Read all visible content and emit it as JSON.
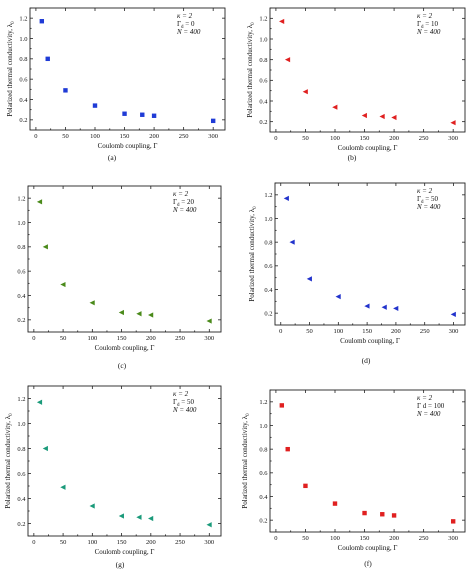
{
  "chart_data": [
    {
      "type": "scatter",
      "panel_caption": "(a)",
      "xlabel": "Coulomb coupling, Γ",
      "ylabel": "Polarized thermal conductivity, λ",
      "ylabel_sub": "0",
      "xlim": [
        -10,
        320
      ],
      "ylim": [
        0.1,
        1.3
      ],
      "xticks": [
        "0",
        "50",
        "100",
        "150",
        "200",
        "250",
        "300"
      ],
      "yticks": [
        "0.2",
        "0.4",
        "0.6",
        "0.8",
        "1.0",
        "1.2"
      ],
      "annotations": [
        "κ = 2",
        "Γ",
        "= 0",
        "N = 400"
      ],
      "marker": "square",
      "color": "#1f3bd6",
      "series": [
        {
          "x": [
            10,
            20,
            50,
            100,
            150,
            180,
            200,
            300
          ],
          "y": [
            1.17,
            0.8,
            0.49,
            0.34,
            0.26,
            0.25,
            0.24,
            0.19
          ]
        }
      ]
    },
    {
      "type": "scatter",
      "panel_caption": "(b)",
      "xlabel": "Coulomb coupling, Γ",
      "ylabel": "Polarized thermal conductivity, λ",
      "ylabel_sub": "0",
      "xlim": [
        -10,
        320
      ],
      "ylim": [
        0.1,
        1.3
      ],
      "xticks": [
        "0",
        "50",
        "100",
        "150",
        "200",
        "250",
        "300"
      ],
      "yticks": [
        "0.2",
        "0.4",
        "0.6",
        "0.8",
        "1.0",
        "1.2"
      ],
      "annotations": [
        "κ = 2",
        "Γ",
        "= 10",
        "N = 400"
      ],
      "marker": "triangle-left",
      "color": "#e02020",
      "series": [
        {
          "x": [
            10,
            20,
            50,
            100,
            150,
            180,
            200,
            300
          ],
          "y": [
            1.17,
            0.8,
            0.49,
            0.34,
            0.26,
            0.25,
            0.24,
            0.19
          ]
        }
      ]
    },
    {
      "type": "scatter",
      "panel_caption": "(c)",
      "xlabel": "Coulomb coupling, Γ",
      "ylabel": "",
      "ylabel_sub": "",
      "xlim": [
        -10,
        320
      ],
      "ylim": [
        0.1,
        1.3
      ],
      "xticks": [
        "0",
        "50",
        "100",
        "150",
        "200",
        "250",
        "300"
      ],
      "yticks": [
        "0.2",
        "0.4",
        "0.6",
        "0.8",
        "1.0",
        "1.2"
      ],
      "annotations": [
        "κ = 2",
        "Γ",
        "= 20",
        "N = 400"
      ],
      "marker": "triangle-left",
      "color": "#4a8a1a",
      "series": [
        {
          "x": [
            10,
            20,
            50,
            100,
            150,
            180,
            200,
            300
          ],
          "y": [
            1.17,
            0.8,
            0.49,
            0.34,
            0.26,
            0.25,
            0.24,
            0.19
          ]
        }
      ]
    },
    {
      "type": "scatter",
      "panel_caption": "(d)",
      "xlabel": "Coulomb coupling, Γ",
      "ylabel": "Polarized thermal conductivity, λ",
      "ylabel_sub": "0",
      "xlim": [
        -10,
        320
      ],
      "ylim": [
        0.1,
        1.3
      ],
      "xticks": [
        "0",
        "50",
        "100",
        "150",
        "200",
        "250",
        "300"
      ],
      "yticks": [
        "0.2",
        "0.4",
        "0.6",
        "0.8",
        "1.0",
        "1.2"
      ],
      "annotations": [
        "κ = 2",
        "Γ",
        "= 50",
        "N = 400"
      ],
      "marker": "triangle-left",
      "color": "#2233cc",
      "series": [
        {
          "x": [
            10,
            20,
            50,
            100,
            150,
            180,
            200,
            300
          ],
          "y": [
            1.17,
            0.8,
            0.49,
            0.34,
            0.26,
            0.25,
            0.24,
            0.19
          ]
        }
      ]
    },
    {
      "type": "scatter",
      "panel_caption": "(g)",
      "xlabel": "Coulomb coupling, Γ",
      "ylabel": "Polarized thermal conductivity, λ",
      "ylabel_sub": "0",
      "xlim": [
        -10,
        320
      ],
      "ylim": [
        0.1,
        1.3
      ],
      "xticks": [
        "0",
        "50",
        "100",
        "150",
        "200",
        "250",
        "300"
      ],
      "yticks": [
        "0.2",
        "0.4",
        "0.6",
        "0.8",
        "1.0",
        "1.2"
      ],
      "annotations": [
        "κ = 2",
        "Γ",
        "= 50",
        "N = 400"
      ],
      "marker": "triangle-left",
      "color": "#1a9a7a",
      "series": [
        {
          "x": [
            10,
            20,
            50,
            100,
            150,
            180,
            200,
            300
          ],
          "y": [
            1.17,
            0.8,
            0.49,
            0.34,
            0.26,
            0.25,
            0.24,
            0.19
          ]
        }
      ]
    },
    {
      "type": "scatter",
      "panel_caption": "(f)",
      "xlabel": "Coulomb coupling, Γ",
      "ylabel": "Polarized thermal conductivity, λ",
      "ylabel_sub": "0",
      "xlim": [
        -10,
        320
      ],
      "ylim": [
        0.1,
        1.3
      ],
      "xticks": [
        "0",
        "50",
        "100",
        "150",
        "200",
        "250",
        "300"
      ],
      "yticks": [
        "0.2",
        "0.4",
        "0.6",
        "0.8",
        "1.0",
        "1.2"
      ],
      "annotations": [
        "κ = 2",
        "Γ d = 100",
        "",
        "N = 400"
      ],
      "marker": "square",
      "color": "#e02020",
      "series": [
        {
          "x": [
            10,
            20,
            50,
            100,
            150,
            180,
            200,
            300
          ],
          "y": [
            1.17,
            0.8,
            0.49,
            0.34,
            0.26,
            0.25,
            0.24,
            0.19
          ]
        }
      ]
    }
  ]
}
